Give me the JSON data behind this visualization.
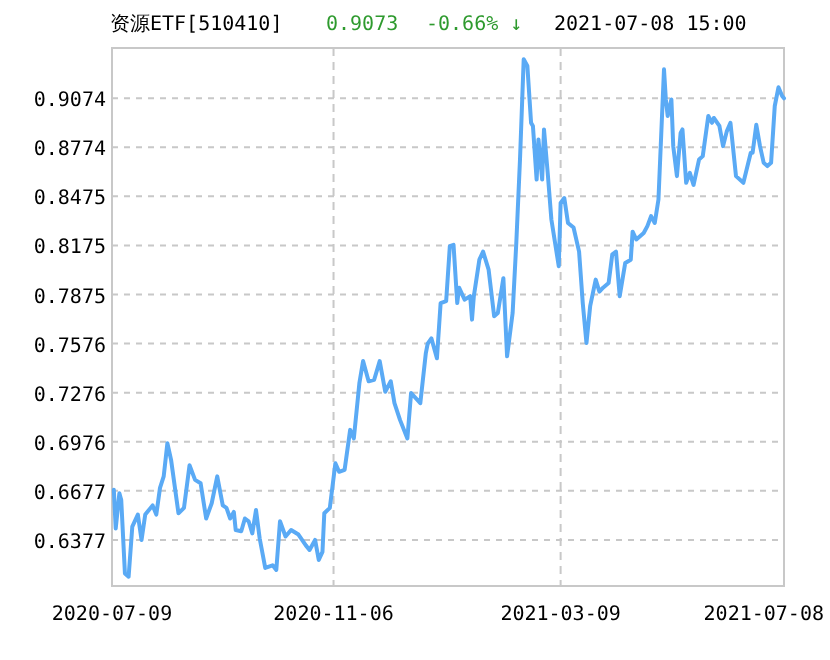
{
  "chart_data": {
    "type": "line",
    "title": "资源ETF[510410]",
    "annotations": [
      "0.9073",
      "-0.66% ↓",
      "2021-07-08 15:00"
    ],
    "xlim": [
      "2020-07-09",
      "2021-07-08"
    ],
    "xticks": [
      "2020-07-09",
      "2020-11-06",
      "2021-03-09",
      "2021-07-08"
    ],
    "ylim": [
      0.6096,
      0.938
    ],
    "yticks": [
      0.6377,
      0.6677,
      0.6976,
      0.7276,
      0.7576,
      0.7875,
      0.8175,
      0.8475,
      0.8774,
      0.9074
    ],
    "grid": true,
    "marker": "none",
    "line_style": "solid",
    "series": [
      {
        "color": "#5aaaf5",
        "x": [
          "2020-07-10",
          "2020-07-11",
          "2020-07-13",
          "2020-07-14",
          "2020-07-16",
          "2020-07-18",
          "2020-07-20",
          "2020-07-23",
          "2020-07-25",
          "2020-07-27",
          "2020-07-31",
          "2020-08-02",
          "2020-08-04",
          "2020-08-06",
          "2020-08-08",
          "2020-08-10",
          "2020-08-14",
          "2020-08-17",
          "2020-08-20",
          "2020-08-23",
          "2020-08-26",
          "2020-08-29",
          "2020-09-01",
          "2020-09-04",
          "2020-09-07",
          "2020-09-09",
          "2020-09-11",
          "2020-09-13",
          "2020-09-14",
          "2020-09-17",
          "2020-09-19",
          "2020-09-21",
          "2020-09-23",
          "2020-09-25",
          "2020-09-27",
          "2020-09-30",
          "2020-10-04",
          "2020-10-06",
          "2020-10-08",
          "2020-10-11",
          "2020-10-14",
          "2020-10-18",
          "2020-10-22",
          "2020-10-24",
          "2020-10-27",
          "2020-10-29",
          "2020-10-31",
          "2020-11-01",
          "2020-11-04",
          "2020-11-07",
          "2020-11-09",
          "2020-11-12",
          "2020-11-15",
          "2020-11-17",
          "2020-11-20",
          "2020-11-22",
          "2020-11-25",
          "2020-11-28",
          "2020-12-01",
          "2020-12-04",
          "2020-12-07",
          "2020-12-09",
          "2020-12-12",
          "2020-12-16",
          "2020-12-18",
          "2020-12-23",
          "2020-12-26",
          "2020-12-27",
          "2020-12-29",
          "2021-01-01",
          "2021-01-03",
          "2021-01-06",
          "2021-01-08",
          "2021-01-10",
          "2021-01-12",
          "2021-01-13",
          "2021-01-16",
          "2021-01-19",
          "2021-01-20",
          "2021-01-21",
          "2021-01-24",
          "2021-01-26",
          "2021-01-29",
          "2021-02-01",
          "2021-02-03",
          "2021-02-06",
          "2021-02-08",
          "2021-02-11",
          "2021-02-13",
          "2021-02-15",
          "2021-02-17",
          "2021-02-19",
          "2021-02-21",
          "2021-02-22",
          "2021-02-24",
          "2021-02-25",
          "2021-02-27",
          "2021-02-28",
          "2021-03-02",
          "2021-03-04",
          "2021-03-08",
          "2021-03-09",
          "2021-03-11",
          "2021-03-13",
          "2021-03-16",
          "2021-03-19",
          "2021-03-21",
          "2021-03-23",
          "2021-03-25",
          "2021-03-28",
          "2021-03-30",
          "2021-04-01",
          "2021-04-04",
          "2021-04-06",
          "2021-04-08",
          "2021-04-10",
          "2021-04-13",
          "2021-04-16",
          "2021-04-17",
          "2021-04-19",
          "2021-04-23",
          "2021-04-25",
          "2021-04-27",
          "2021-04-29",
          "2021-05-01",
          "2021-05-04",
          "2021-05-05",
          "2021-05-06",
          "2021-05-08",
          "2021-05-09",
          "2021-05-11",
          "2021-05-13",
          "2021-05-14",
          "2021-05-16",
          "2021-05-18",
          "2021-05-20",
          "2021-05-23",
          "2021-05-25",
          "2021-05-28",
          "2021-05-30",
          "2021-05-31",
          "2021-06-03",
          "2021-06-05",
          "2021-06-07",
          "2021-06-09",
          "2021-06-12",
          "2021-06-16",
          "2021-06-20",
          "2021-06-21",
          "2021-06-23",
          "2021-06-25",
          "2021-06-27",
          "2021-06-29",
          "2021-07-01",
          "2021-07-03",
          "2021-07-05",
          "2021-07-07",
          "2021-07-08"
        ],
        "values": [
          0.6683,
          0.6447,
          0.6662,
          0.6621,
          0.6173,
          0.6153,
          0.6459,
          0.6532,
          0.6377,
          0.6532,
          0.6588,
          0.6532,
          0.6695,
          0.6765,
          0.6967,
          0.6866,
          0.654,
          0.6573,
          0.6833,
          0.6744,
          0.6723,
          0.6508,
          0.6601,
          0.6765,
          0.6588,
          0.6573,
          0.6508,
          0.6548,
          0.6438,
          0.643,
          0.6508,
          0.6491,
          0.6417,
          0.656,
          0.6386,
          0.6206,
          0.6222,
          0.6194,
          0.6491,
          0.6398,
          0.6438,
          0.641,
          0.6344,
          0.6316,
          0.6377,
          0.6255,
          0.6304,
          0.654,
          0.6573,
          0.6845,
          0.6793,
          0.6805,
          0.7049,
          0.6997,
          0.7334,
          0.7469,
          0.7346,
          0.7355,
          0.7469,
          0.7282,
          0.7346,
          0.7212,
          0.711,
          0.6997,
          0.7274,
          0.7212,
          0.7518,
          0.7575,
          0.7608,
          0.7486,
          0.7823,
          0.7835,
          0.817,
          0.8178,
          0.7823,
          0.7917,
          0.7844,
          0.7865,
          0.7722,
          0.7865,
          0.8088,
          0.8137,
          0.8027,
          0.7742,
          0.7762,
          0.7975,
          0.7498,
          0.7762,
          0.819,
          0.87,
          0.9311,
          0.927,
          0.8923,
          0.8904,
          0.8577,
          0.8822,
          0.8577,
          0.8883,
          0.8618,
          0.8333,
          0.8048,
          0.8434,
          0.8464,
          0.8312,
          0.8284,
          0.8137,
          0.7823,
          0.7579,
          0.7804,
          0.7966,
          0.7893,
          0.7917,
          0.7945,
          0.8121,
          0.8137,
          0.7865,
          0.8068,
          0.8088,
          0.8259,
          0.8211,
          0.8251,
          0.8293,
          0.8354,
          0.8312,
          0.8455,
          0.925,
          0.9066,
          0.8965,
          0.9066,
          0.8781,
          0.8598,
          0.8862,
          0.8883,
          0.8557,
          0.8618,
          0.8544,
          0.87,
          0.872,
          0.8965,
          0.8923,
          0.8953,
          0.8904,
          0.8781,
          0.8871,
          0.8923,
          0.8598,
          0.8557,
          0.874,
          0.874,
          0.8911,
          0.8781,
          0.8679,
          0.8659,
          0.8679,
          0.9026,
          0.914,
          0.9087,
          0.9073
        ]
      }
    ]
  }
}
